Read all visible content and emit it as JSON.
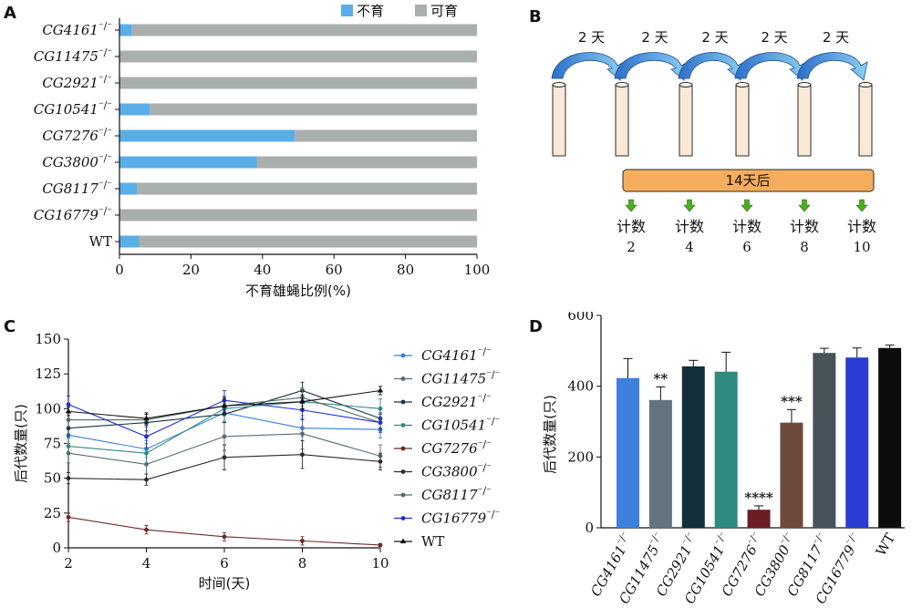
{
  "panel_labels": {
    "a": "A",
    "b": "B",
    "c": "C",
    "d": "D"
  },
  "colors": {
    "sterile": "#5aaee8",
    "fertile": "#a9aeae",
    "tube_fill": "#fbe9d7",
    "arrow": "#3f86d6",
    "bar14": "#f6ad5e",
    "small_arrow": "#4caf22"
  },
  "chart_data": [
    {
      "type": "bar",
      "orientation": "horizontal",
      "stacked": true,
      "categories": [
        "CG4161⁻/⁻",
        "CG11475⁻/⁻",
        "CG2921⁻/⁻",
        "CG10541⁻/⁻",
        "CG7276⁻/⁻",
        "CG3800⁻/⁻",
        "CG8117⁻/⁻",
        "CG16779⁻/⁻",
        "WT"
      ],
      "series": [
        {
          "name": "不育",
          "color": "#5aaee8",
          "values": [
            3.5,
            0,
            0,
            8.5,
            49,
            38.5,
            5,
            0,
            5.5
          ]
        },
        {
          "name": "可育",
          "color": "#a9aeae",
          "values": [
            96.5,
            100,
            100,
            91.5,
            51,
            61.5,
            95,
            100,
            94.5
          ]
        }
      ],
      "xlabel": "不育雄蝇比例(%)",
      "xticks": [
        "0",
        "20",
        "40",
        "60",
        "80",
        "100"
      ],
      "xlim": [
        0,
        100
      ],
      "legend": "top-right"
    },
    {
      "type": "line",
      "x": [
        2,
        4,
        6,
        8,
        10
      ],
      "xlabel": "时间(天)",
      "ylabel": "后代数量(只)",
      "xticks": [
        "2",
        "4",
        "6",
        "8",
        "10"
      ],
      "yticks": [
        "0",
        "25",
        "50",
        "75",
        "100",
        "125",
        "150"
      ],
      "xlim": [
        2,
        10
      ],
      "ylim": [
        0,
        150
      ],
      "legend": "right",
      "series": [
        {
          "name": "CG4161⁻/⁻",
          "color": "#3b7dd8",
          "marker": "circle",
          "values": [
            81,
            71,
            97,
            86,
            85
          ],
          "err": [
            6,
            6,
            7,
            6,
            6
          ]
        },
        {
          "name": "CG11475⁻/⁻",
          "color": "#5b6b78",
          "marker": "circle",
          "values": [
            68,
            60,
            80,
            82,
            66
          ],
          "err": [
            7,
            7,
            10,
            11,
            8
          ]
        },
        {
          "name": "CG2921⁻/⁻",
          "color": "#183540",
          "marker": "circle",
          "values": [
            86,
            90,
            96,
            113,
            93
          ],
          "err": [
            6,
            6,
            6,
            6,
            7
          ]
        },
        {
          "name": "CG10541⁻/⁻",
          "color": "#2e8a80",
          "marker": "circle",
          "values": [
            73,
            68,
            100,
            105,
            100
          ],
          "err": [
            6,
            7,
            9,
            10,
            7
          ]
        },
        {
          "name": "CG7276⁻/⁻",
          "color": "#6e2a2a",
          "marker": "circle",
          "values": [
            22,
            13,
            8,
            5,
            2
          ],
          "err": [
            3,
            3,
            3,
            3,
            1
          ]
        },
        {
          "name": "CG3800⁻/⁻",
          "color": "#2a2a2a",
          "marker": "circle",
          "values": [
            50,
            49,
            65,
            67,
            62
          ],
          "err": [
            4,
            4,
            9,
            10,
            6
          ]
        },
        {
          "name": "CG8117⁻/⁻",
          "color": "#506a60",
          "marker": "circle",
          "values": [
            92,
            92,
            102,
            108,
            90
          ],
          "err": [
            5,
            5,
            6,
            6,
            6
          ]
        },
        {
          "name": "CG16779⁻/⁻",
          "color": "#1f2ed6",
          "marker": "circle",
          "values": [
            103,
            80,
            106,
            99,
            90
          ],
          "err": [
            6,
            8,
            7,
            7,
            7
          ]
        },
        {
          "name": "WT",
          "color": "#111111",
          "marker": "triangle",
          "values": [
            98,
            93,
            102,
            105,
            113
          ],
          "err": [
            3,
            4,
            6,
            5,
            3
          ]
        }
      ]
    },
    {
      "type": "bar",
      "categories": [
        "CG4161⁻/⁻",
        "CG11475⁻/⁻",
        "CG2921⁻/⁻",
        "CG10541⁻/⁻",
        "CG7276⁻/⁻",
        "CG3800⁻/⁻",
        "CG8117⁻/⁻",
        "CG16779⁻/⁻",
        "WT"
      ],
      "values": [
        423,
        361,
        456,
        441,
        51,
        297,
        494,
        481,
        508
      ],
      "errors": [
        55,
        37,
        17,
        55,
        11,
        37,
        13,
        27,
        8
      ],
      "colors": [
        "#3d80de",
        "#63737f",
        "#132f3c",
        "#2f8a80",
        "#6b1d23",
        "#6e4a3a",
        "#475359",
        "#2a3ed4",
        "#0d0d0d"
      ],
      "annotations": [
        "",
        "**",
        "",
        "",
        "****",
        "***",
        "",
        "",
        ""
      ],
      "ylabel": "后代数量(只)",
      "yticks": [
        "0",
        "200",
        "400",
        "600"
      ],
      "ylim": [
        0,
        600
      ]
    }
  ],
  "panel_b": {
    "interval_labels": [
      "2 天",
      "2 天",
      "2 天",
      "2 天",
      "2 天"
    ],
    "bar_text": "14天后",
    "count_label": "计数",
    "counts": [
      "2",
      "4",
      "6",
      "8",
      "10"
    ]
  }
}
